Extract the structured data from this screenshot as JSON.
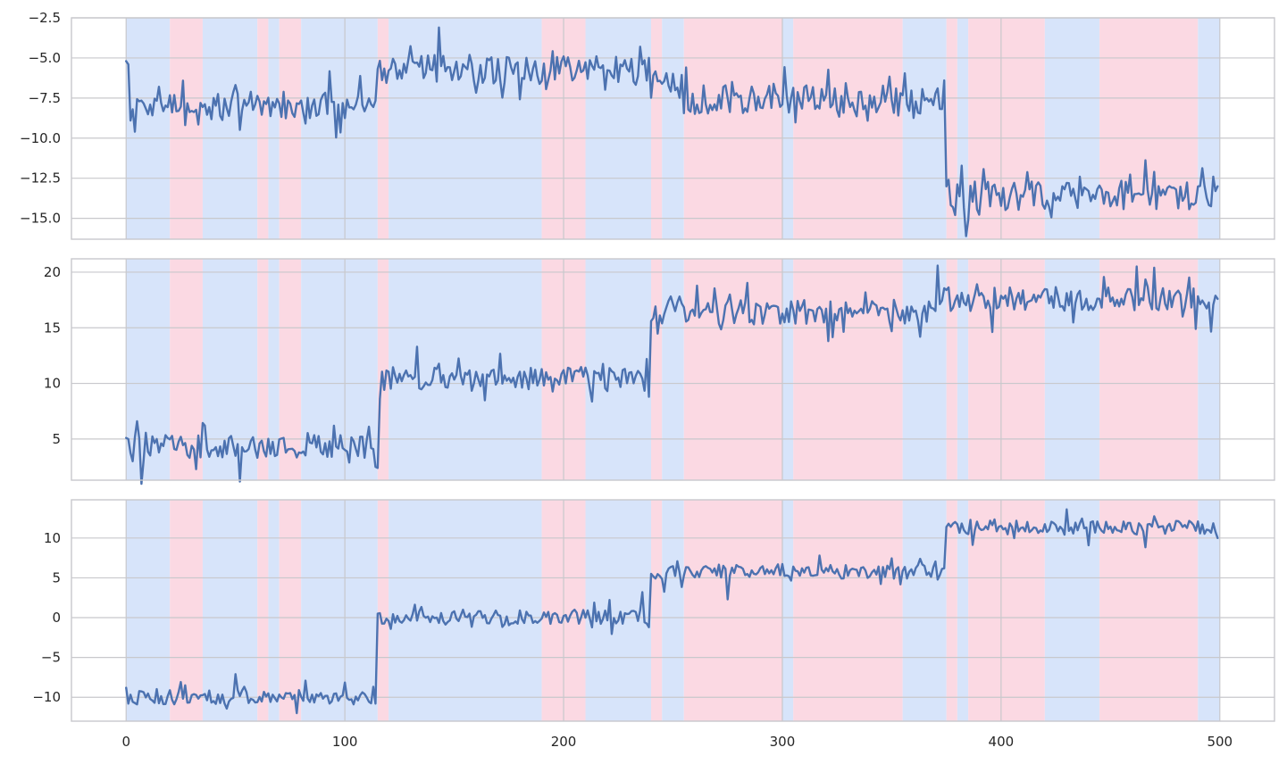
{
  "chart_data": {
    "type": "line",
    "grid": true,
    "legend": "none",
    "x_range": [
      -25,
      525
    ],
    "x_ticks": [
      0,
      100,
      200,
      300,
      400,
      500
    ],
    "x_tick_labels": [
      "0",
      "100",
      "200",
      "300",
      "400",
      "500"
    ],
    "colors": {
      "line": "#4c72b0",
      "regime_a": "#d7e4fa",
      "regime_b": "#fbd9e3",
      "grid": "#c8c8cc"
    },
    "regime_segments": [
      {
        "start": 0,
        "end": 20,
        "regime": "a"
      },
      {
        "start": 20,
        "end": 35,
        "regime": "b"
      },
      {
        "start": 35,
        "end": 60,
        "regime": "a"
      },
      {
        "start": 60,
        "end": 65,
        "regime": "b"
      },
      {
        "start": 65,
        "end": 70,
        "regime": "a"
      },
      {
        "start": 70,
        "end": 80,
        "regime": "b"
      },
      {
        "start": 80,
        "end": 115,
        "regime": "a"
      },
      {
        "start": 115,
        "end": 120,
        "regime": "b"
      },
      {
        "start": 120,
        "end": 190,
        "regime": "a"
      },
      {
        "start": 190,
        "end": 210,
        "regime": "b"
      },
      {
        "start": 210,
        "end": 240,
        "regime": "a"
      },
      {
        "start": 240,
        "end": 245,
        "regime": "b"
      },
      {
        "start": 245,
        "end": 255,
        "regime": "a"
      },
      {
        "start": 255,
        "end": 300,
        "regime": "b"
      },
      {
        "start": 300,
        "end": 305,
        "regime": "a"
      },
      {
        "start": 305,
        "end": 355,
        "regime": "b"
      },
      {
        "start": 355,
        "end": 375,
        "regime": "a"
      },
      {
        "start": 375,
        "end": 380,
        "regime": "b"
      },
      {
        "start": 380,
        "end": 385,
        "regime": "a"
      },
      {
        "start": 385,
        "end": 420,
        "regime": "b"
      },
      {
        "start": 420,
        "end": 445,
        "regime": "a"
      },
      {
        "start": 445,
        "end": 490,
        "regime": "b"
      },
      {
        "start": 490,
        "end": 500,
        "regime": "a"
      }
    ],
    "panels": [
      {
        "ylim": [
          -16.3,
          -2.5
        ],
        "y_ticks": [
          -15.0,
          -12.5,
          -10.0,
          -7.5,
          -5.0,
          -2.5
        ],
        "y_tick_labels": [
          "−15.0",
          "−12.5",
          "−10.0",
          "−7.5",
          "−5.0",
          "−2.5"
        ],
        "noise": 0.9,
        "spike": 1.1,
        "levels": [
          {
            "start": 0,
            "end": 115,
            "value": -8.0
          },
          {
            "start": 115,
            "end": 120,
            "value": -6.5
          },
          {
            "start": 120,
            "end": 240,
            "value": -5.7
          },
          {
            "start": 240,
            "end": 255,
            "value": -6.6
          },
          {
            "start": 255,
            "end": 375,
            "value": -7.6
          },
          {
            "start": 375,
            "end": 500,
            "value": -13.6
          }
        ],
        "samples": [
          {
            "x": 0,
            "y": -5.2
          },
          {
            "x": 1,
            "y": -5.4
          },
          {
            "x": 2,
            "y": -8.9
          },
          {
            "x": 3,
            "y": -8.2
          },
          {
            "x": 4,
            "y": -9.6
          },
          {
            "x": 143,
            "y": -3.1
          },
          {
            "x": 374,
            "y": -6.4
          },
          {
            "x": 376,
            "y": -12.6
          },
          {
            "x": 385,
            "y": -15.1
          },
          {
            "x": 470,
            "y": -12.1
          },
          {
            "x": 497,
            "y": -12.4
          },
          {
            "x": 498,
            "y": -13.3
          },
          {
            "x": 499,
            "y": -13.0
          }
        ]
      },
      {
        "ylim": [
          1.3,
          21.2
        ],
        "y_ticks": [
          5,
          10,
          15,
          20
        ],
        "y_tick_labels": [
          "5",
          "10",
          "15",
          "20"
        ],
        "noise": 1.1,
        "spike": 1.5,
        "levels": [
          {
            "start": 0,
            "end": 115,
            "value": 4.4
          },
          {
            "start": 115,
            "end": 240,
            "value": 10.4
          },
          {
            "start": 240,
            "end": 370,
            "value": 16.4
          },
          {
            "start": 370,
            "end": 500,
            "value": 17.6
          }
        ],
        "samples": [
          {
            "x": 0,
            "y": 5.1
          },
          {
            "x": 1,
            "y": 5.0
          },
          {
            "x": 3,
            "y": 3.0
          },
          {
            "x": 5,
            "y": 6.6
          },
          {
            "x": 114,
            "y": 2.5
          },
          {
            "x": 115,
            "y": 2.4
          },
          {
            "x": 116,
            "y": 8.6
          },
          {
            "x": 133,
            "y": 13.3
          },
          {
            "x": 238,
            "y": 12.2
          },
          {
            "x": 239,
            "y": 8.8
          },
          {
            "x": 240,
            "y": 15.6
          },
          {
            "x": 470,
            "y": 20.4
          },
          {
            "x": 499,
            "y": 17.6
          }
        ]
      },
      {
        "ylim": [
          -13.0,
          14.8
        ],
        "y_ticks": [
          -10,
          -5,
          0,
          5,
          10
        ],
        "y_tick_labels": [
          "−10",
          "−5",
          "0",
          "5",
          "10"
        ],
        "noise": 0.9,
        "spike": 1.3,
        "levels": [
          {
            "start": 0,
            "end": 115,
            "value": -10.0
          },
          {
            "start": 115,
            "end": 240,
            "value": 0.1
          },
          {
            "start": 240,
            "end": 375,
            "value": 5.8
          },
          {
            "start": 375,
            "end": 500,
            "value": 11.3
          }
        ],
        "samples": [
          {
            "x": 0,
            "y": -8.8
          },
          {
            "x": 1,
            "y": -10.8
          },
          {
            "x": 114,
            "y": -10.8
          },
          {
            "x": 115,
            "y": 0.5
          },
          {
            "x": 236,
            "y": 3.2
          },
          {
            "x": 239,
            "y": -1.2
          },
          {
            "x": 240,
            "y": 5.5
          },
          {
            "x": 275,
            "y": 2.3
          },
          {
            "x": 374,
            "y": 6.2
          },
          {
            "x": 376,
            "y": 11.8
          },
          {
            "x": 430,
            "y": 13.6
          },
          {
            "x": 499,
            "y": 10.0
          }
        ]
      }
    ]
  }
}
